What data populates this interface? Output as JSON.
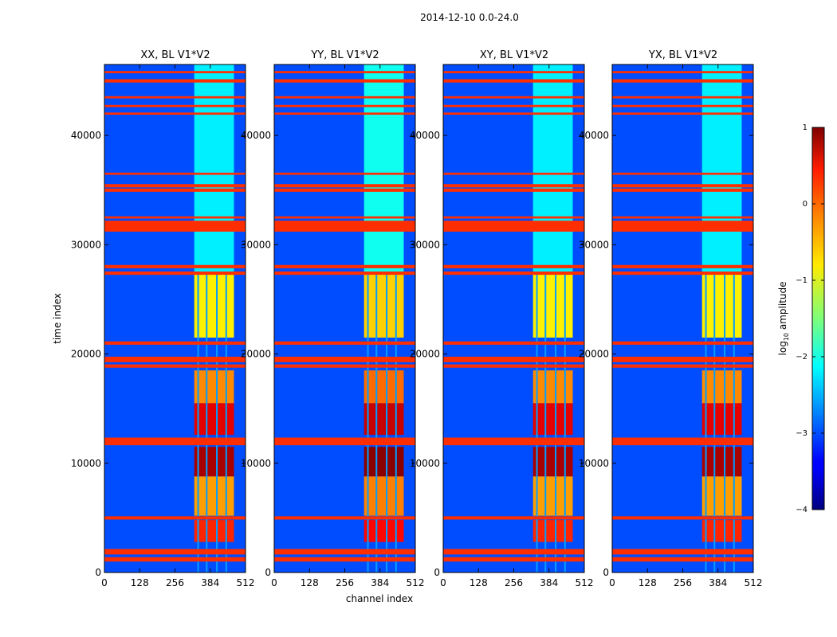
{
  "chart_data": {
    "type": "heatmap",
    "suptitle": "2014-12-10 0.0-24.0",
    "xlabel": "channel index",
    "ylabel": "time index",
    "xlim": [
      0,
      512
    ],
    "ylim": [
      0,
      46500
    ],
    "xticks": [
      0,
      128,
      256,
      384,
      512
    ],
    "yticks": [
      0,
      10000,
      20000,
      30000,
      40000
    ],
    "xtick_labels": [
      "0",
      "128",
      "256",
      "384",
      "512"
    ],
    "ytick_labels": [
      "0",
      "10000",
      "20000",
      "30000",
      "40000"
    ],
    "panels": [
      {
        "title": "XX, BL V1*V2",
        "pol": "XX"
      },
      {
        "title": "YY, BL V1*V2",
        "pol": "YY"
      },
      {
        "title": "XY, BL V1*V2",
        "pol": "XY"
      },
      {
        "title": "YX, BL V1*V2",
        "pol": "YX"
      }
    ],
    "colorbar": {
      "label_prefix": "log",
      "label_sub": "10",
      "label_suffix": " amplitude",
      "range": [
        -4,
        1
      ],
      "ticks": [
        1,
        0,
        -1,
        -2,
        -3,
        -4
      ],
      "tick_labels": [
        "1",
        "0",
        "−1",
        "−2",
        "−3",
        "−4"
      ],
      "colormap": "jet"
    },
    "background_log_amp": -3.0,
    "rfi_channel_band": [
      326,
      470
    ],
    "rfi_subband_centers": [
      352,
      389,
      426,
      456
    ],
    "rfi_subband_gaps": [
      340,
      371,
      408,
      442
    ],
    "rfi_time_segments": [
      {
        "t0": 2800,
        "t1": 4800,
        "level": 0.2
      },
      {
        "t0": 5200,
        "t1": 8800,
        "level": -0.4
      },
      {
        "t0": 8800,
        "t1": 11500,
        "level": 0.8
      },
      {
        "t0": 12600,
        "t1": 15500,
        "level": 0.5
      },
      {
        "t0": 15500,
        "t1": 18500,
        "level": -0.3
      },
      {
        "t0": 21500,
        "t1": 27500,
        "level": -0.8
      },
      {
        "t0": 27500,
        "t1": 46500,
        "level": -2.2
      }
    ],
    "flagged_rows": [
      1200,
      1900,
      5000,
      12000,
      18900,
      19500,
      21000,
      27400,
      28000,
      31700,
      32500,
      35000,
      35400,
      36500,
      42000,
      42700,
      43500,
      45000,
      45800
    ],
    "flagged_level": 0.15,
    "flag_row_width": [
      400,
      500,
      300,
      700,
      300,
      500,
      300,
      300,
      300,
      1000,
      200,
      300,
      300,
      200,
      200,
      200,
      200,
      300,
      200
    ]
  }
}
